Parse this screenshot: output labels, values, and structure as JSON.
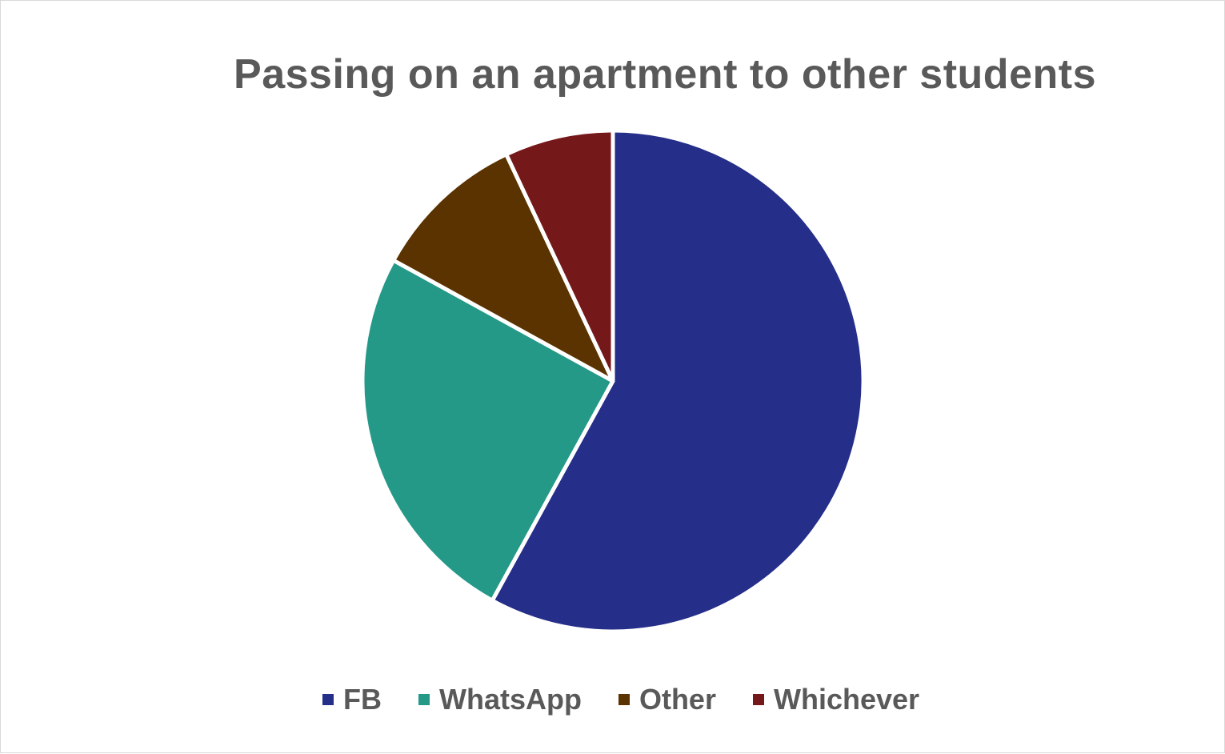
{
  "chart_data": {
    "type": "pie",
    "title": "Passing on an apartment to other students",
    "slices": [
      {
        "label": "FB",
        "value": 58,
        "color": "#252E88"
      },
      {
        "label": "WhatsApp",
        "value": 25,
        "color": "#259987"
      },
      {
        "label": "Other",
        "value": 10,
        "color": "#5A3300"
      },
      {
        "label": "Whichever",
        "value": 7,
        "color": "#75181A"
      }
    ],
    "legend_position": "bottom"
  }
}
